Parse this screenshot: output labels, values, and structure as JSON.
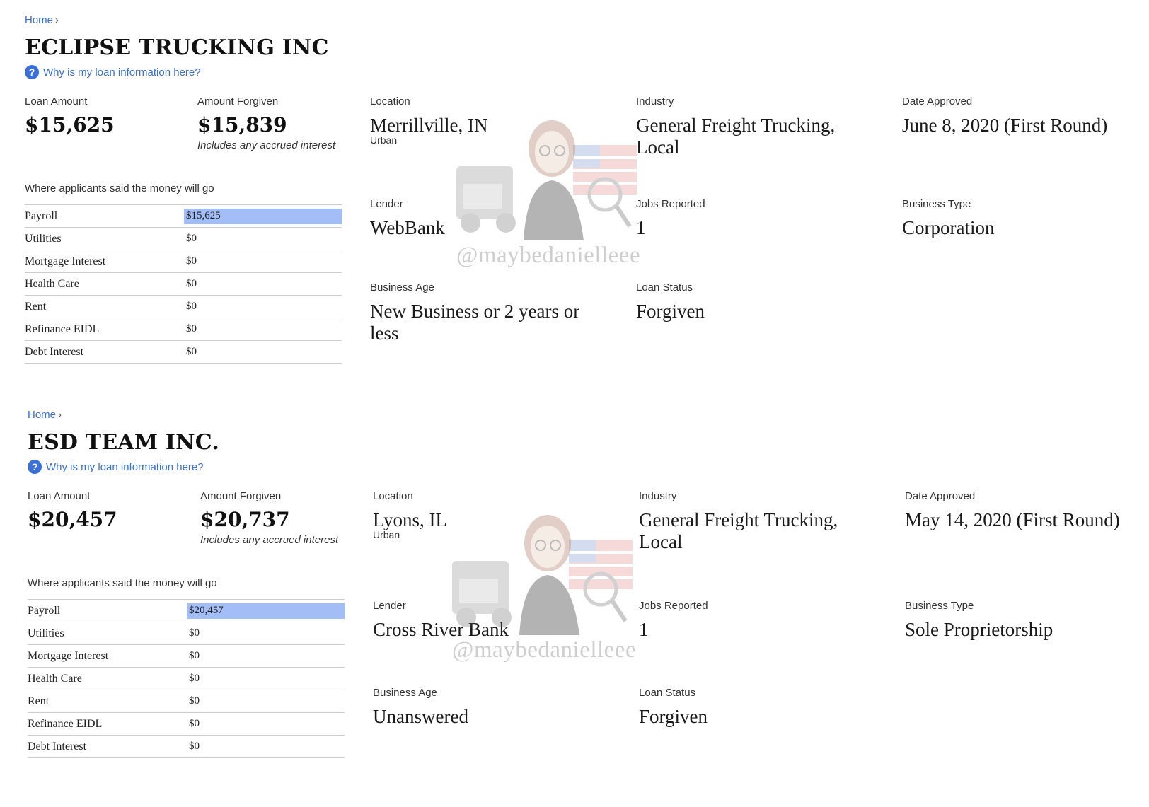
{
  "common": {
    "home": "Home",
    "why": "Why is my loan information here?",
    "q_icon": "?",
    "loan_amount_label": "Loan Amount",
    "amount_forgiven_label": "Amount Forgiven",
    "forgiven_note": "Includes any accrued interest",
    "money_heading": "Where applicants said the money will go",
    "location_label": "Location",
    "industry_label": "Industry",
    "date_label": "Date Approved",
    "lender_label": "Lender",
    "jobs_label": "Jobs Reported",
    "btype_label": "Business Type",
    "age_label": "Business Age",
    "status_label": "Loan Status",
    "watermark": "@maybedanielleee"
  },
  "records": [
    {
      "name": "ECLIPSE TRUCKING INC",
      "loan_amount": "$15,625",
      "amount_forgiven": "$15,839",
      "location": "Merrillville, IN",
      "location_sub": "Urban",
      "industry": "General Freight Trucking, Local",
      "date_approved": "June 8, 2020 (First Round)",
      "lender": "WebBank",
      "jobs": "1",
      "business_type": "Corporation",
      "business_age": "New Business or 2 years or less",
      "loan_status": "Forgiven",
      "money": [
        {
          "category": "Payroll",
          "amount": "$15,625",
          "share": 1.0
        },
        {
          "category": "Utilities",
          "amount": "$0",
          "share": 0
        },
        {
          "category": "Mortgage Interest",
          "amount": "$0",
          "share": 0
        },
        {
          "category": "Health Care",
          "amount": "$0",
          "share": 0
        },
        {
          "category": "Rent",
          "amount": "$0",
          "share": 0
        },
        {
          "category": "Refinance EIDL",
          "amount": "$0",
          "share": 0
        },
        {
          "category": "Debt Interest",
          "amount": "$0",
          "share": 0
        }
      ]
    },
    {
      "name": "ESD TEAM INC.",
      "loan_amount": "$20,457",
      "amount_forgiven": "$20,737",
      "location": "Lyons, IL",
      "location_sub": "Urban",
      "industry": "General Freight Trucking, Local",
      "date_approved": "May 14, 2020 (First Round)",
      "lender": "Cross River Bank",
      "jobs": "1",
      "business_type": "Sole Proprietorship",
      "business_age": "Unanswered",
      "loan_status": "Forgiven",
      "money": [
        {
          "category": "Payroll",
          "amount": "$20,457",
          "share": 1.0
        },
        {
          "category": "Utilities",
          "amount": "$0",
          "share": 0
        },
        {
          "category": "Mortgage Interest",
          "amount": "$0",
          "share": 0
        },
        {
          "category": "Health Care",
          "amount": "$0",
          "share": 0
        },
        {
          "category": "Rent",
          "amount": "$0",
          "share": 0
        },
        {
          "category": "Refinance EIDL",
          "amount": "$0",
          "share": 0
        },
        {
          "category": "Debt Interest",
          "amount": "$0",
          "share": 0
        }
      ]
    }
  ]
}
